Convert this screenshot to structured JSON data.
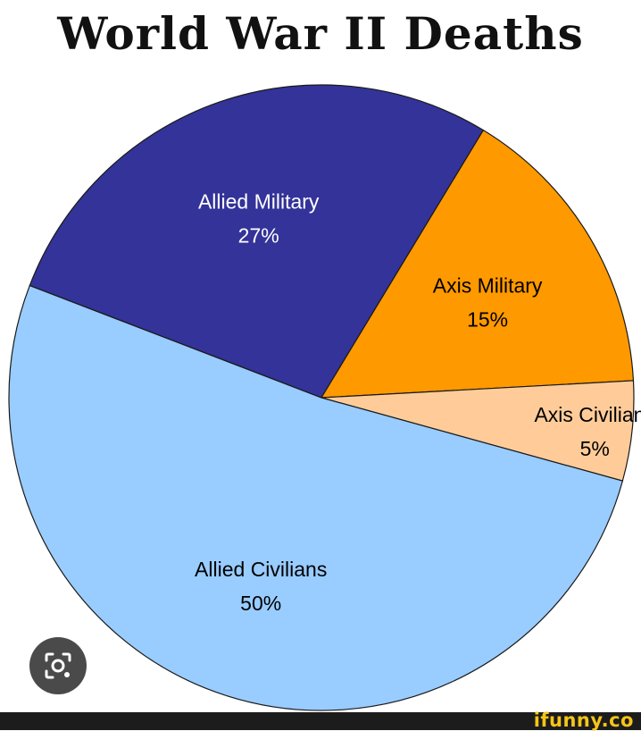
{
  "chart_data": {
    "type": "pie",
    "title": "World War II Deaths",
    "slices": [
      {
        "label": "Allied Military",
        "value": 27,
        "value_label": "27%",
        "color": "#333399",
        "text_color": "#ffffff"
      },
      {
        "label": "Axis Military",
        "value": 15,
        "value_label": "15%",
        "color": "#ff9900",
        "text_color": "#000000"
      },
      {
        "label": "Axis Civilians",
        "value": 5,
        "value_label": "5%",
        "color": "#ffcc99",
        "text_color": "#000000"
      },
      {
        "label": "Allied Civilians",
        "value": 50,
        "value_label": "50%",
        "color": "#99ccff",
        "text_color": "#000000"
      }
    ]
  },
  "overlay": {
    "lens_icon": "camera-lens-icon",
    "brand": "ifunny.co"
  }
}
